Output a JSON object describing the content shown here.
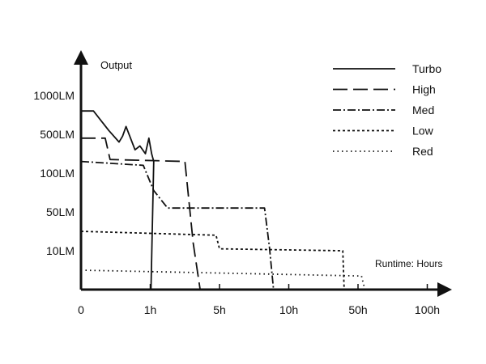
{
  "chart_data": {
    "type": "line",
    "title": "",
    "ylabel": "Output",
    "xlabel": "Runtime: Hours",
    "x_ticks": [
      {
        "label": "0",
        "value": 0
      },
      {
        "label": "1h",
        "value": 1
      },
      {
        "label": "5h",
        "value": 2
      },
      {
        "label": "10h",
        "value": 3
      },
      {
        "label": "50h",
        "value": 4
      },
      {
        "label": "100h",
        "value": 5
      }
    ],
    "y_ticks": [
      {
        "label": "10LM",
        "value": 1
      },
      {
        "label": "50LM",
        "value": 2
      },
      {
        "label": "100LM",
        "value": 3
      },
      {
        "label": "500LM",
        "value": 4
      },
      {
        "label": "1000LM",
        "value": 5
      }
    ],
    "xlim": [
      0,
      5.2
    ],
    "ylim": [
      0,
      5.8
    ],
    "grid": false,
    "legend": "top-right",
    "series": [
      {
        "name": "Turbo",
        "dash": "",
        "points": [
          [
            0,
            4.6
          ],
          [
            0.18,
            4.6
          ],
          [
            0.4,
            4.1
          ],
          [
            0.55,
            3.8
          ],
          [
            0.6,
            3.95
          ],
          [
            0.65,
            4.2
          ],
          [
            0.78,
            3.6
          ],
          [
            0.85,
            3.7
          ],
          [
            0.93,
            3.5
          ],
          [
            0.98,
            3.9
          ],
          [
            1.02,
            3.5
          ],
          [
            1.05,
            3.3
          ],
          [
            1.01,
            0
          ]
        ]
      },
      {
        "name": "High",
        "dash": "18 7",
        "points": [
          [
            0,
            3.9
          ],
          [
            0.35,
            3.9
          ],
          [
            0.42,
            3.35
          ],
          [
            1.5,
            3.3
          ],
          [
            1.62,
            1.2
          ],
          [
            1.72,
            0
          ]
        ]
      },
      {
        "name": "Med",
        "dash": "10 3 2 3",
        "points": [
          [
            0,
            3.3
          ],
          [
            0.9,
            3.2
          ],
          [
            1.05,
            2.55
          ],
          [
            1.25,
            2.1
          ],
          [
            2.65,
            2.1
          ],
          [
            2.72,
            1.1
          ],
          [
            2.78,
            0
          ]
        ]
      },
      {
        "name": "Low",
        "dash": "3 3",
        "points": [
          [
            0,
            1.5
          ],
          [
            1.95,
            1.4
          ],
          [
            2.0,
            1.05
          ],
          [
            3.78,
            1.0
          ],
          [
            3.8,
            0
          ]
        ]
      },
      {
        "name": "Red",
        "dash": "1.5 4",
        "points": [
          [
            0,
            0.5
          ],
          [
            4.05,
            0.35
          ],
          [
            4.1,
            0
          ]
        ]
      }
    ]
  },
  "colors": {
    "line": "#111111"
  }
}
